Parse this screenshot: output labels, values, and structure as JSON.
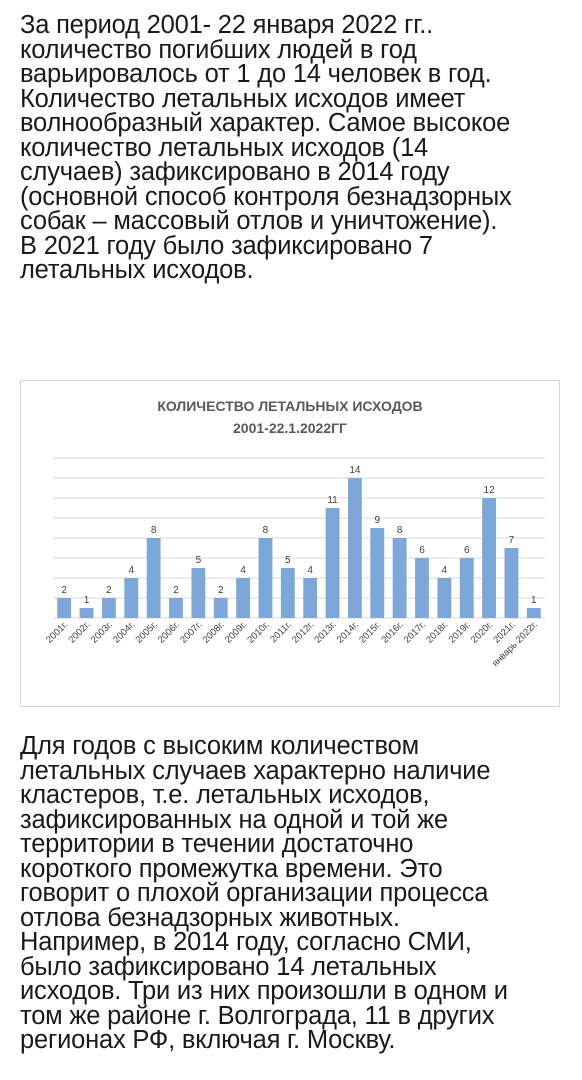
{
  "text": {
    "paragraph_top": "За период 2001- 22 января 2022 гг..\nколичество погибших людей в год\nварьировалось от 1 до 14 человек в год.\nКоличество летальных исходов имеет\nволнообразный характер. Самое высокое\nколичество летальных исходов (14\nслучаев) зафиксировано в 2014 году\n(основной способ контроля безнадзорных\nсобак – массовый отлов и уничтожение).\nВ 2021 году было зафиксировано 7\nлетальных исходов.",
    "paragraph_bottom": "Для годов с высоким количеством\nлетальных случаев характерно наличие\nкластеров, т.е. летальных исходов,\nзафиксированных на одной и той же\nтерритории в течении достаточно\nкороткого промежутка времени. Это\nговорит о плохой организации процесса\nотлова безнадзорных животных.\nНапример, в 2014 году, согласно СМИ,\nбыло зафиксировано 14 летальных\nисходов. Три из них произошли в одном и\nтом же районе г. Волгограда, 11 в других\nрегионах РФ, включая г. Москву."
  },
  "chart_data": {
    "type": "bar",
    "title": "КОЛИЧЕСТВО ЛЕТАЛЬНЫХ ИСХОДОВ",
    "subtitle": "2001-22.1.2022ГГ",
    "categories": [
      "2001г.",
      "2002г.",
      "2003г.",
      "2004г.",
      "2005г.",
      "2006г.",
      "2007г.",
      "2008г.",
      "2009г.",
      "2010г.",
      "2011г.",
      "2012г.",
      "2013г.",
      "2014г.",
      "2015г.",
      "2016г.",
      "2017г.",
      "2018г.",
      "2019г.",
      "2020г.",
      "2021г.",
      "январь 2022г."
    ],
    "values": [
      2,
      1,
      2,
      4,
      8,
      2,
      5,
      2,
      4,
      8,
      5,
      4,
      11,
      14,
      9,
      8,
      6,
      4,
      6,
      12,
      7,
      1
    ],
    "xlabel": "",
    "ylabel": "",
    "ylim": [
      0,
      16
    ],
    "grid": true,
    "data_labels": true,
    "bar_color": "#7da7d9",
    "grid_color": "#d9d9d9",
    "legend": "none"
  }
}
